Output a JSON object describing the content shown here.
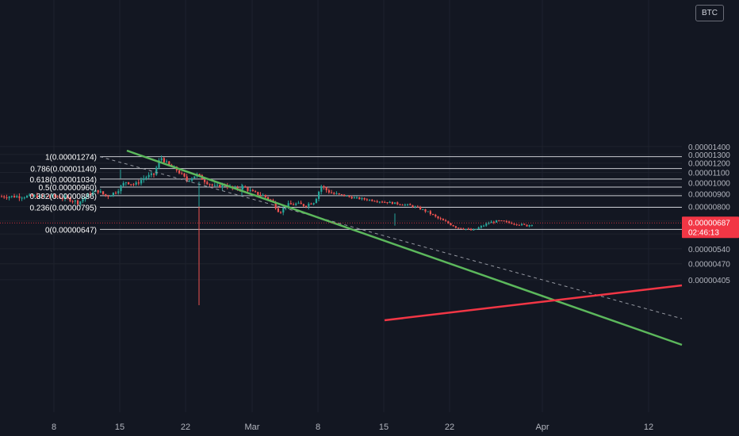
{
  "currency_button": "BTC",
  "colors": {
    "background": "#131722",
    "grid": "#1e222d",
    "up": "#26a69a",
    "down": "#ef5350",
    "fib": "#c9cbd1",
    "green_trendline": "#5cb85c",
    "red_trendline": "#f23645",
    "dashed": "#9598a1",
    "price_tag": "#f23645"
  },
  "chart_data": {
    "type": "candlestick",
    "pair_currency": "BTC",
    "x_ticks": [
      "8",
      "15",
      "22",
      "Mar",
      "8",
      "15",
      "22",
      "Apr",
      "12"
    ],
    "y_ticks": [
      "0.00001400",
      "0.00001300",
      "0.00001200",
      "0.00001100",
      "0.00001000",
      "0.00000900",
      "0.00000800",
      "0.00000700",
      "0.00000620",
      "0.00000540",
      "0.00000470",
      "0.00000405"
    ],
    "y_tick_values": [
      1.4e-05,
      1.3e-05,
      1.2e-05,
      1.1e-05,
      1e-05,
      9e-06,
      8e-06,
      7e-06,
      6.2e-06,
      5.4e-06,
      4.7e-06,
      4.05e-06
    ],
    "y_scale": "log",
    "ylim": [
      4e-06,
      1.55e-05
    ],
    "fibonacci_retracement": [
      {
        "label": "1(0.00001274)",
        "value": 1.274e-05
      },
      {
        "label": "0.786(0.00001140)",
        "value": 1.14e-05
      },
      {
        "label": "0.618(0.00001034)",
        "value": 1.034e-05
      },
      {
        "label": "0.5(0.00000960)",
        "value": 9.6e-06
      },
      {
        "label": "0.382(0.00000886)",
        "value": 8.86e-06
      },
      {
        "label": "0.236(0.00000795)",
        "value": 7.95e-06
      },
      {
        "label": "0(0.00000647)",
        "value": 6.47e-06
      }
    ],
    "current_price": {
      "label": "0.00000687",
      "value": 6.87e-06,
      "countdown": "02:46:13"
    },
    "price_trajectory": [
      [
        0.0,
        8.8e-06
      ],
      [
        1.5,
        8.6e-06
      ],
      [
        2.5,
        8.3e-06
      ],
      [
        3.5,
        8.9e-06
      ],
      [
        4.5,
        9.3e-06
      ],
      [
        5.5,
        8.8e-06
      ],
      [
        6.5,
        9.2e-06
      ],
      [
        7.5,
        1.01e-05
      ],
      [
        8.5,
        9.8e-06
      ],
      [
        9.5,
        1.05e-05
      ],
      [
        10.5,
        1.08e-05
      ],
      [
        11.2,
        1.27e-05
      ],
      [
        12.0,
        1.18e-05
      ],
      [
        13.0,
        1.12e-05
      ],
      [
        14.0,
        1.02e-05
      ],
      [
        15.0,
        1.08e-05
      ],
      [
        16.0,
        1.01e-05
      ],
      [
        17.0,
        9.6e-06
      ],
      [
        18.0,
        9.8e-06
      ],
      [
        19.0,
        9.4e-06
      ],
      [
        20.0,
        9.6e-06
      ],
      [
        21.0,
        9.1e-06
      ],
      [
        22.0,
        8.9e-06
      ],
      [
        23.0,
        8.4e-06
      ],
      [
        23.8,
        7.6e-06
      ],
      [
        24.5,
        8.1e-06
      ],
      [
        25.5,
        8.2e-06
      ],
      [
        26.5,
        8.1e-06
      ],
      [
        27.5,
        8.4e-06
      ],
      [
        28.2,
        9.7e-06
      ],
      [
        28.8,
        9.3e-06
      ],
      [
        29.5,
        9e-06
      ],
      [
        30.5,
        8.9e-06
      ],
      [
        31.5,
        8.7e-06
      ],
      [
        32.5,
        8.6e-06
      ],
      [
        33.5,
        8.5e-06
      ],
      [
        34.5,
        8.4e-06
      ],
      [
        35.5,
        8.3e-06
      ],
      [
        36.5,
        8.2e-06
      ],
      [
        37.5,
        8.1e-06
      ],
      [
        38.5,
        7.9e-06
      ],
      [
        39.5,
        7.6e-06
      ],
      [
        40.5,
        7.2e-06
      ],
      [
        41.5,
        6.9e-06
      ],
      [
        42.5,
        6.6e-06
      ],
      [
        43.5,
        6.5e-06
      ],
      [
        44.2,
        6.4e-06
      ],
      [
        45.0,
        6.6e-06
      ],
      [
        46.0,
        6.9e-06
      ],
      [
        47.0,
        7e-06
      ],
      [
        48.0,
        6.9e-06
      ],
      [
        49.0,
        6.8e-06
      ],
      [
        50.0,
        6.7e-06
      ],
      [
        51.0,
        6.9e-06
      ],
      [
        52.0,
        7.1e-06
      ],
      [
        53.0,
        7e-06
      ],
      [
        54.0,
        6.9e-06
      ],
      [
        55.0,
        6.7e-06
      ],
      [
        56.0,
        6.9e-06
      ],
      [
        57.0,
        6.8e-06
      ],
      [
        58.0,
        7.1e-06
      ],
      [
        59.0,
        6.8e-06
      ],
      [
        59.7,
        6.87e-06
      ]
    ]
  }
}
